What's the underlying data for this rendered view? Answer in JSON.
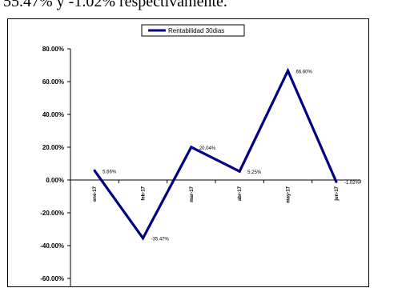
{
  "page": {
    "top_text": "55.47% y -1.02% respectivamente."
  },
  "colors": {
    "series": "#000080"
  },
  "chart_data": {
    "type": "line",
    "categories": [
      "ene-17",
      "feb-17",
      "mar-17",
      "abr-17",
      "may-17",
      "jun-17"
    ],
    "series": [
      {
        "name": "Rentabilidad 30dias",
        "values": [
          5.66,
          -35.47,
          20.04,
          5.25,
          66.6,
          -1.02
        ],
        "labels": [
          "5.66%",
          "-35.47%",
          "20.04%",
          "5.25%",
          "66.60%",
          "-1.02%"
        ]
      }
    ],
    "yticks": [
      80,
      60,
      40,
      20,
      0,
      -20,
      -40,
      -60
    ],
    "ytick_labels": [
      "80.00%",
      "60.00%",
      "40.00%",
      "20.00%",
      "0.00%",
      "-20.00%",
      "-40.00%",
      "-60.00%"
    ],
    "ylim": [
      -60,
      80
    ],
    "legend": "top-center",
    "grid": false
  }
}
